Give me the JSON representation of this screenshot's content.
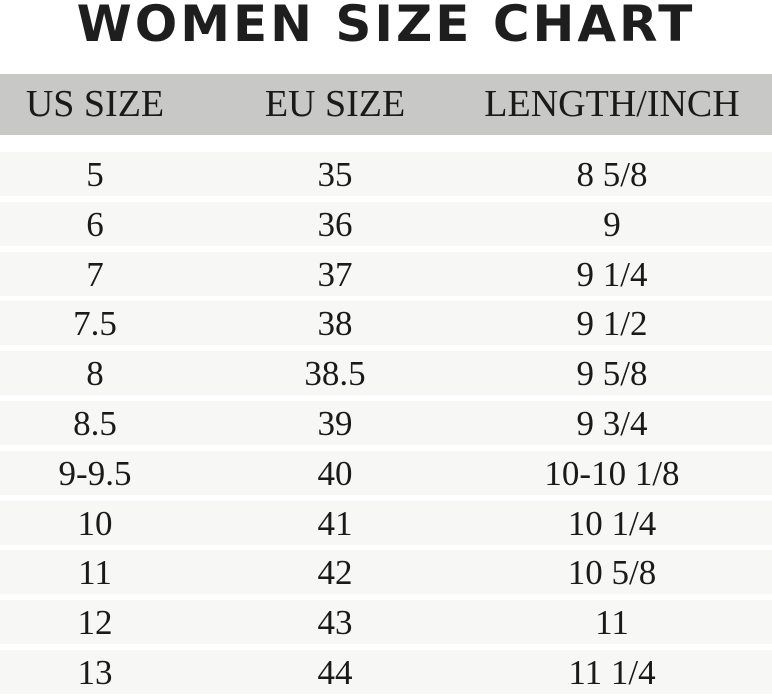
{
  "title": "WOMEN SIZE CHART",
  "table": {
    "headers": [
      "US SIZE",
      "EU SIZE",
      "LENGTH/INCH"
    ],
    "rows": [
      [
        "5",
        "35",
        "8 5/8"
      ],
      [
        "6",
        "36",
        "9"
      ],
      [
        "7",
        "37",
        "9 1/4"
      ],
      [
        "7.5",
        "38",
        "9 1/2"
      ],
      [
        "8",
        "38.5",
        "9 5/8"
      ],
      [
        "8.5",
        "39",
        "9 3/4"
      ],
      [
        "9-9.5",
        "40",
        "10-10 1/8"
      ],
      [
        "10",
        "41",
        "10 1/4"
      ],
      [
        "11",
        "42",
        "10 5/8"
      ],
      [
        "12",
        "43",
        "11"
      ],
      [
        "13",
        "44",
        "11 1/4"
      ]
    ]
  },
  "colors": {
    "header_bg": "#c8c8c6",
    "row_bg": "#f7f7f5",
    "text": "#1a1a1a"
  }
}
